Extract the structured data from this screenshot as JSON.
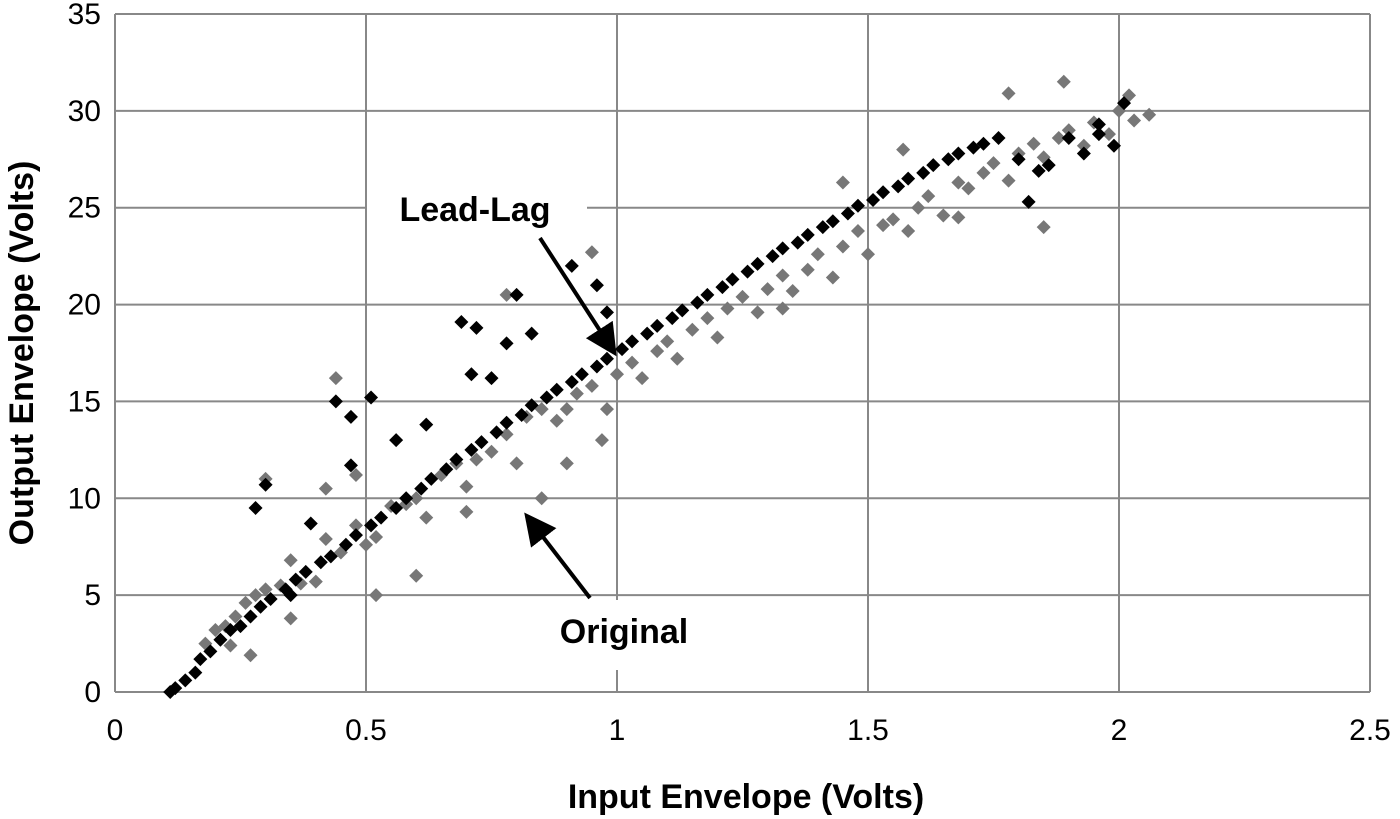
{
  "chart_data": {
    "type": "scatter",
    "title": "",
    "xlabel": "Input Envelope (Volts)",
    "ylabel": "Output Envelope (Volts)",
    "xlim": [
      0,
      2.5
    ],
    "ylim": [
      0,
      35
    ],
    "xticks": [
      0,
      0.5,
      1,
      1.5,
      2,
      2.5
    ],
    "yticks": [
      0,
      5,
      10,
      15,
      20,
      25,
      30,
      35
    ],
    "xtick_labels": [
      "0",
      "0.5",
      "1",
      "1.5",
      "2",
      "2.5"
    ],
    "ytick_labels": [
      "0",
      "5",
      "10",
      "15",
      "20",
      "25",
      "30",
      "35"
    ],
    "grid": true,
    "legend": "none",
    "colors": {
      "original": "#777777",
      "lead_lag": "#000000",
      "grid": "#888888"
    },
    "marker": "diamond",
    "series": [
      {
        "color": "#777777",
        "points": [
          [
            0.18,
            2.5
          ],
          [
            0.2,
            3.2
          ],
          [
            0.22,
            3.4
          ],
          [
            0.24,
            3.9
          ],
          [
            0.26,
            4.6
          ],
          [
            0.28,
            5.0
          ],
          [
            0.3,
            5.3
          ],
          [
            0.33,
            5.5
          ],
          [
            0.35,
            6.8
          ],
          [
            0.37,
            5.6
          ],
          [
            0.4,
            5.7
          ],
          [
            0.42,
            7.9
          ],
          [
            0.45,
            7.2
          ],
          [
            0.48,
            8.6
          ],
          [
            0.5,
            7.6
          ],
          [
            0.52,
            8.0
          ],
          [
            0.55,
            9.6
          ],
          [
            0.58,
            9.7
          ],
          [
            0.6,
            10.0
          ],
          [
            0.62,
            9.0
          ],
          [
            0.65,
            11.2
          ],
          [
            0.68,
            11.8
          ],
          [
            0.7,
            10.6
          ],
          [
            0.72,
            12.0
          ],
          [
            0.75,
            12.4
          ],
          [
            0.78,
            13.3
          ],
          [
            0.8,
            11.8
          ],
          [
            0.82,
            14.2
          ],
          [
            0.85,
            14.6
          ],
          [
            0.88,
            14.0
          ],
          [
            0.9,
            14.6
          ],
          [
            0.92,
            15.4
          ],
          [
            0.95,
            15.8
          ],
          [
            0.98,
            14.6
          ],
          [
            1.0,
            16.4
          ],
          [
            1.03,
            17.0
          ],
          [
            1.05,
            16.2
          ],
          [
            1.08,
            17.6
          ],
          [
            1.1,
            18.1
          ],
          [
            1.12,
            17.2
          ],
          [
            1.15,
            18.7
          ],
          [
            1.18,
            19.3
          ],
          [
            1.2,
            18.3
          ],
          [
            1.22,
            19.8
          ],
          [
            1.25,
            20.4
          ],
          [
            1.28,
            19.6
          ],
          [
            1.3,
            20.8
          ],
          [
            1.33,
            21.5
          ],
          [
            1.35,
            20.7
          ],
          [
            1.38,
            21.8
          ],
          [
            1.4,
            22.6
          ],
          [
            1.43,
            21.4
          ],
          [
            1.45,
            23.0
          ],
          [
            1.48,
            23.8
          ],
          [
            1.5,
            22.6
          ],
          [
            1.53,
            24.1
          ],
          [
            1.55,
            24.4
          ],
          [
            1.58,
            23.8
          ],
          [
            1.6,
            25.0
          ],
          [
            1.62,
            25.6
          ],
          [
            1.65,
            24.6
          ],
          [
            1.68,
            26.3
          ],
          [
            1.7,
            26.0
          ],
          [
            1.73,
            26.8
          ],
          [
            1.75,
            27.3
          ],
          [
            1.78,
            26.4
          ],
          [
            1.8,
            27.8
          ],
          [
            1.83,
            28.3
          ],
          [
            1.85,
            27.6
          ],
          [
            1.88,
            28.6
          ],
          [
            1.9,
            29.0
          ],
          [
            1.93,
            28.2
          ],
          [
            1.95,
            29.4
          ],
          [
            1.98,
            28.8
          ],
          [
            2.0,
            30.0
          ],
          [
            2.03,
            29.5
          ],
          [
            2.06,
            29.8
          ],
          [
            2.02,
            30.8
          ],
          [
            1.89,
            31.5
          ],
          [
            1.78,
            30.9
          ],
          [
            0.44,
            16.2
          ],
          [
            0.3,
            11.0
          ],
          [
            0.95,
            22.7
          ],
          [
            0.78,
            20.5
          ],
          [
            1.33,
            19.8
          ],
          [
            1.85,
            24.0
          ],
          [
            1.68,
            24.5
          ],
          [
            0.85,
            10.0
          ],
          [
            0.7,
            9.3
          ],
          [
            0.35,
            3.8
          ],
          [
            0.23,
            2.4
          ],
          [
            0.6,
            6.0
          ],
          [
            0.9,
            11.8
          ],
          [
            1.45,
            26.3
          ],
          [
            0.42,
            10.5
          ],
          [
            0.52,
            5.0
          ],
          [
            0.97,
            13.0
          ],
          [
            0.27,
            1.9
          ],
          [
            0.48,
            11.2
          ],
          [
            1.57,
            28.0
          ]
        ]
      },
      {
        "color": "#000000",
        "points": [
          [
            0.11,
            0.0
          ],
          [
            0.12,
            0.2
          ],
          [
            0.14,
            0.6
          ],
          [
            0.16,
            1.0
          ],
          [
            0.17,
            1.7
          ],
          [
            0.19,
            2.1
          ],
          [
            0.21,
            2.7
          ],
          [
            0.23,
            3.2
          ],
          [
            0.25,
            3.4
          ],
          [
            0.27,
            3.9
          ],
          [
            0.29,
            4.4
          ],
          [
            0.31,
            4.8
          ],
          [
            0.34,
            5.3
          ],
          [
            0.36,
            5.8
          ],
          [
            0.38,
            6.2
          ],
          [
            0.41,
            6.7
          ],
          [
            0.43,
            7.0
          ],
          [
            0.46,
            7.6
          ],
          [
            0.48,
            8.1
          ],
          [
            0.51,
            8.6
          ],
          [
            0.53,
            9.0
          ],
          [
            0.56,
            9.5
          ],
          [
            0.58,
            10.0
          ],
          [
            0.61,
            10.5
          ],
          [
            0.63,
            11.0
          ],
          [
            0.66,
            11.5
          ],
          [
            0.68,
            12.0
          ],
          [
            0.71,
            12.5
          ],
          [
            0.73,
            12.9
          ],
          [
            0.76,
            13.4
          ],
          [
            0.78,
            13.9
          ],
          [
            0.81,
            14.3
          ],
          [
            0.83,
            14.8
          ],
          [
            0.86,
            15.2
          ],
          [
            0.88,
            15.6
          ],
          [
            0.91,
            16.0
          ],
          [
            0.93,
            16.4
          ],
          [
            0.96,
            16.8
          ],
          [
            0.98,
            17.2
          ],
          [
            1.01,
            17.7
          ],
          [
            1.03,
            18.1
          ],
          [
            1.06,
            18.5
          ],
          [
            1.08,
            18.9
          ],
          [
            1.11,
            19.3
          ],
          [
            1.13,
            19.7
          ],
          [
            1.16,
            20.1
          ],
          [
            1.18,
            20.5
          ],
          [
            1.21,
            20.9
          ],
          [
            1.23,
            21.3
          ],
          [
            1.26,
            21.7
          ],
          [
            1.28,
            22.1
          ],
          [
            1.31,
            22.5
          ],
          [
            1.33,
            22.9
          ],
          [
            1.36,
            23.2
          ],
          [
            1.38,
            23.6
          ],
          [
            1.41,
            24.0
          ],
          [
            1.43,
            24.3
          ],
          [
            1.46,
            24.7
          ],
          [
            1.48,
            25.1
          ],
          [
            1.51,
            25.4
          ],
          [
            1.53,
            25.8
          ],
          [
            1.56,
            26.1
          ],
          [
            1.58,
            26.5
          ],
          [
            1.61,
            26.8
          ],
          [
            1.63,
            27.2
          ],
          [
            1.66,
            27.5
          ],
          [
            1.68,
            27.8
          ],
          [
            1.71,
            28.1
          ],
          [
            1.73,
            28.3
          ],
          [
            1.76,
            28.6
          ],
          [
            1.8,
            27.5
          ],
          [
            1.84,
            26.9
          ],
          [
            1.86,
            27.2
          ],
          [
            1.9,
            28.6
          ],
          [
            1.93,
            27.8
          ],
          [
            1.96,
            28.8
          ],
          [
            1.99,
            28.2
          ],
          [
            2.01,
            30.4
          ],
          [
            1.82,
            25.3
          ],
          [
            1.96,
            29.3
          ],
          [
            0.44,
            15.0
          ],
          [
            0.47,
            14.2
          ],
          [
            0.51,
            15.2
          ],
          [
            0.69,
            19.1
          ],
          [
            0.72,
            18.8
          ],
          [
            0.8,
            20.5
          ],
          [
            0.78,
            18.0
          ],
          [
            0.83,
            18.5
          ],
          [
            0.91,
            22.0
          ],
          [
            0.96,
            21.0
          ],
          [
            0.98,
            19.6
          ],
          [
            0.3,
            10.7
          ],
          [
            0.28,
            9.5
          ],
          [
            0.39,
            8.7
          ],
          [
            0.47,
            11.7
          ],
          [
            0.62,
            13.8
          ],
          [
            0.71,
            16.4
          ],
          [
            0.75,
            16.2
          ],
          [
            0.56,
            13.0
          ],
          [
            0.35,
            5.0
          ]
        ]
      }
    ],
    "annotations": [
      {
        "text": "Lead-Lag",
        "arrow_to": [
          0.995,
          17.5
        ]
      },
      {
        "text": "Original",
        "arrow_to": [
          0.82,
          9.1
        ]
      }
    ]
  }
}
